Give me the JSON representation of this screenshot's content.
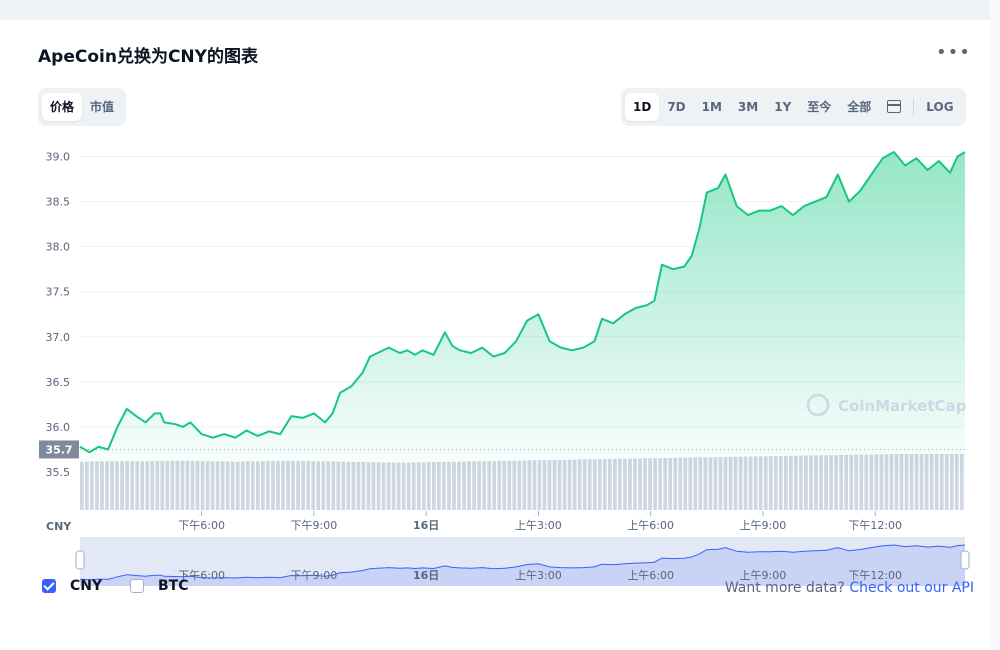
{
  "header": {
    "title": "ApeCoin兑换为CNY的图表",
    "more_icon": "more-horizontal-icon"
  },
  "metric_tabs": [
    {
      "label": "价格",
      "active": true
    },
    {
      "label": "市值",
      "active": false
    }
  ],
  "range_tabs": [
    {
      "label": "1D",
      "active": true
    },
    {
      "label": "7D",
      "active": false
    },
    {
      "label": "1M",
      "active": false
    },
    {
      "label": "3M",
      "active": false
    },
    {
      "label": "1Y",
      "active": false
    },
    {
      "label": "至今",
      "active": false
    },
    {
      "label": "全部",
      "active": false
    }
  ],
  "calendar_icon": "calendar-icon",
  "log_label": "LOG",
  "watermark": "CoinMarketCap",
  "legend": {
    "cny": {
      "label": "CNY",
      "checked": true
    },
    "btc": {
      "label": "BTC",
      "checked": false
    }
  },
  "api": {
    "text": "Want more data? ",
    "link": "Check out our API"
  },
  "colors": {
    "line": "#16c784",
    "accent": "#3861fb",
    "text": "#0d1421",
    "muted": "#58667e",
    "current": "#808a9d"
  },
  "chart_data": {
    "type": "area",
    "currency_label": "CNY",
    "current_price_label": "35.7",
    "open_price": 35.75,
    "ylim": [
      35.5,
      39.15
    ],
    "y_ticks": [
      "35.5",
      "36.0",
      "36.5",
      "37.0",
      "37.5",
      "38.0",
      "38.5",
      "39.0"
    ],
    "x_ticks": [
      "下午6:00",
      "下午9:00",
      "16日",
      "上午3:00",
      "上午6:00",
      "上午9:00",
      "下午12:00"
    ],
    "x_tick_hours": [
      18,
      21,
      24,
      27,
      30,
      33,
      36
    ],
    "xlim_hours": [
      14.75,
      38.4
    ],
    "grid": true,
    "series": [
      {
        "values": [
          [
            14.75,
            35.78
          ],
          [
            15.0,
            35.72
          ],
          [
            15.25,
            35.78
          ],
          [
            15.5,
            35.75
          ],
          [
            15.75,
            36.0
          ],
          [
            16.0,
            36.2
          ],
          [
            16.25,
            36.12
          ],
          [
            16.5,
            36.05
          ],
          [
            16.75,
            36.15
          ],
          [
            16.9,
            36.15
          ],
          [
            17.0,
            36.05
          ],
          [
            17.3,
            36.03
          ],
          [
            17.5,
            36.0
          ],
          [
            17.7,
            36.05
          ],
          [
            18.0,
            35.92
          ],
          [
            18.3,
            35.88
          ],
          [
            18.6,
            35.92
          ],
          [
            18.9,
            35.88
          ],
          [
            19.2,
            35.96
          ],
          [
            19.5,
            35.9
          ],
          [
            19.8,
            35.95
          ],
          [
            20.1,
            35.92
          ],
          [
            20.4,
            36.12
          ],
          [
            20.7,
            36.1
          ],
          [
            21.0,
            36.15
          ],
          [
            21.3,
            36.05
          ],
          [
            21.5,
            36.15
          ],
          [
            21.7,
            36.38
          ],
          [
            22.0,
            36.45
          ],
          [
            22.3,
            36.6
          ],
          [
            22.5,
            36.78
          ],
          [
            22.7,
            36.82
          ],
          [
            23.0,
            36.88
          ],
          [
            23.3,
            36.82
          ],
          [
            23.5,
            36.85
          ],
          [
            23.7,
            36.8
          ],
          [
            23.9,
            36.85
          ],
          [
            24.2,
            36.8
          ],
          [
            24.5,
            37.05
          ],
          [
            24.7,
            36.9
          ],
          [
            24.9,
            36.85
          ],
          [
            25.2,
            36.82
          ],
          [
            25.5,
            36.88
          ],
          [
            25.8,
            36.78
          ],
          [
            26.1,
            36.82
          ],
          [
            26.4,
            36.95
          ],
          [
            26.7,
            37.18
          ],
          [
            27.0,
            37.25
          ],
          [
            27.3,
            36.95
          ],
          [
            27.6,
            36.88
          ],
          [
            27.9,
            36.85
          ],
          [
            28.2,
            36.88
          ],
          [
            28.5,
            36.95
          ],
          [
            28.7,
            37.2
          ],
          [
            29.0,
            37.15
          ],
          [
            29.3,
            37.25
          ],
          [
            29.6,
            37.32
          ],
          [
            29.9,
            37.35
          ],
          [
            30.1,
            37.4
          ],
          [
            30.3,
            37.8
          ],
          [
            30.6,
            37.75
          ],
          [
            30.9,
            37.78
          ],
          [
            31.1,
            37.9
          ],
          [
            31.3,
            38.2
          ],
          [
            31.5,
            38.6
          ],
          [
            31.8,
            38.65
          ],
          [
            32.0,
            38.8
          ],
          [
            32.3,
            38.45
          ],
          [
            32.6,
            38.35
          ],
          [
            32.9,
            38.4
          ],
          [
            33.2,
            38.4
          ],
          [
            33.5,
            38.45
          ],
          [
            33.8,
            38.35
          ],
          [
            34.1,
            38.45
          ],
          [
            34.4,
            38.5
          ],
          [
            34.7,
            38.55
          ],
          [
            35.0,
            38.8
          ],
          [
            35.3,
            38.5
          ],
          [
            35.6,
            38.62
          ],
          [
            35.9,
            38.8
          ],
          [
            36.2,
            38.98
          ],
          [
            36.5,
            39.05
          ],
          [
            36.8,
            38.9
          ],
          [
            37.1,
            38.98
          ],
          [
            37.4,
            38.85
          ],
          [
            37.7,
            38.95
          ],
          [
            38.0,
            38.82
          ],
          [
            38.2,
            39.0
          ],
          [
            38.4,
            39.05
          ]
        ]
      }
    ],
    "volume": {
      "bar_count": 176,
      "values": [
        0.52,
        0.53,
        0.54,
        0.55,
        0.56,
        0.55,
        0.54,
        0.55,
        0.56,
        0.57,
        0.58,
        0.57,
        0.56,
        0.55,
        0.54,
        0.53,
        0.52,
        0.53,
        0.54,
        0.55,
        0.56,
        0.57,
        0.58,
        0.57,
        0.56,
        0.55,
        0.54,
        0.53,
        0.52,
        0.51,
        0.5,
        0.49,
        0.48,
        0.47,
        0.46,
        0.47,
        0.48,
        0.49,
        0.5,
        0.51,
        0.52,
        0.53,
        0.54,
        0.55,
        0.56,
        0.57,
        0.58,
        0.59,
        0.6,
        0.61,
        0.62,
        0.63,
        0.64,
        0.65,
        0.66,
        0.67,
        0.68,
        0.69,
        0.7,
        0.71,
        0.72,
        0.73,
        0.74,
        0.75,
        0.76,
        0.77,
        0.78,
        0.79,
        0.8,
        0.81,
        0.82,
        0.83,
        0.84,
        0.85,
        0.86,
        0.87,
        0.88,
        0.89,
        0.9,
        0.91,
        0.92,
        0.93,
        0.94,
        0.95,
        0.96,
        0.97,
        0.98,
        0.99,
        1.0,
        1.0,
        1.0,
        1.0,
        1.0,
        1.0,
        1.0,
        1.0
      ]
    },
    "navigator": {
      "ticks": [
        "下午6:00",
        "下午9:00",
        "16日",
        "上午3:00",
        "上午6:00",
        "上午9:00",
        "下午12:00"
      ]
    }
  }
}
